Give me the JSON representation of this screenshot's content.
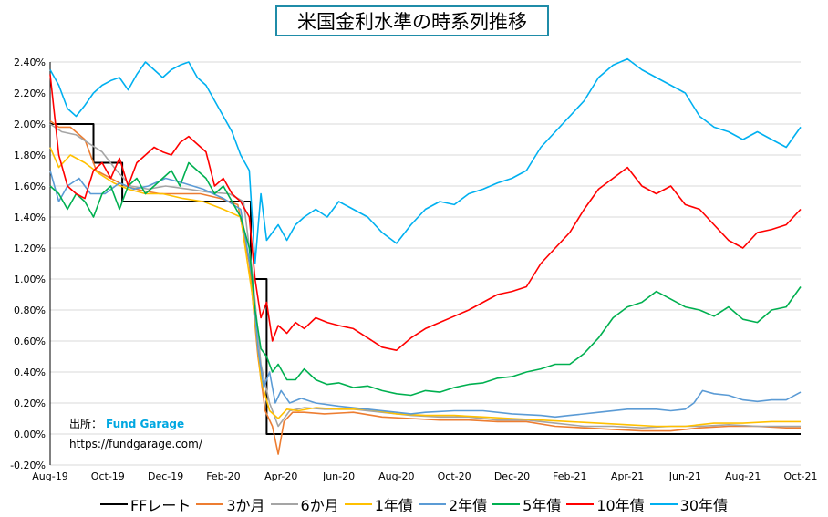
{
  "chart_data": {
    "type": "line",
    "title": "米国金利水準の時系列推移",
    "source_label": "出所：",
    "source_name": "Fund Garage",
    "source_url": "https://fundgarage.com/",
    "ylim": [
      -0.2,
      2.4
    ],
    "y_ticks": [
      "-0.20%",
      "0.00%",
      "0.20%",
      "0.40%",
      "0.60%",
      "0.80%",
      "1.00%",
      "1.20%",
      "1.40%",
      "1.60%",
      "1.80%",
      "2.00%",
      "2.20%",
      "2.40%"
    ],
    "y_tick_values": [
      -0.2,
      0,
      0.2,
      0.4,
      0.6,
      0.8,
      1.0,
      1.2,
      1.4,
      1.6,
      1.8,
      2.0,
      2.2,
      2.4
    ],
    "x_ticks": [
      "Aug-19",
      "Oct-19",
      "Dec-19",
      "Feb-20",
      "Apr-20",
      "Jun-20",
      "Aug-20",
      "Oct-20",
      "Dec-20",
      "Feb-21",
      "Apr-21",
      "Jun-21",
      "Aug-21",
      "Oct-21"
    ],
    "x_tick_values": [
      0,
      2,
      4,
      6,
      8,
      10,
      12,
      14,
      16,
      18,
      20,
      22,
      24,
      26
    ],
    "legend_position": "bottom",
    "series": [
      {
        "name": "FFレート",
        "color": "#000000",
        "step": true,
        "x": [
          0,
          1.0,
          1.5,
          1.5,
          2.5,
          2.5,
          6.95,
          6.95,
          7.5,
          7.5,
          26
        ],
        "y": [
          2.0,
          2.0,
          2.0,
          1.75,
          1.75,
          1.5,
          1.5,
          1.0,
          1.0,
          0.0,
          0.0
        ]
      },
      {
        "name": "3か月",
        "color": "#ed7d31",
        "x": [
          0,
          0.3,
          0.7,
          1.2,
          1.6,
          2.1,
          2.6,
          3.2,
          3.8,
          4.5,
          5.2,
          5.9,
          6.5,
          6.9,
          7.2,
          7.45,
          7.7,
          7.9,
          8.1,
          8.4,
          8.8,
          9.5,
          10.5,
          11.5,
          12.5,
          13.5,
          14.5,
          15.5,
          16.5,
          17.5,
          18.5,
          19.5,
          20.5,
          21.5,
          22.5,
          23.5,
          24.5,
          25.5,
          26
        ],
        "y": [
          2.02,
          1.98,
          1.98,
          1.9,
          1.7,
          1.65,
          1.6,
          1.57,
          1.55,
          1.55,
          1.55,
          1.52,
          1.48,
          1.1,
          0.5,
          0.15,
          0.05,
          -0.13,
          0.08,
          0.14,
          0.14,
          0.13,
          0.14,
          0.11,
          0.1,
          0.09,
          0.09,
          0.08,
          0.08,
          0.05,
          0.04,
          0.03,
          0.02,
          0.02,
          0.04,
          0.05,
          0.05,
          0.04,
          0.04
        ]
      },
      {
        "name": "6か月",
        "color": "#a5a5a5",
        "x": [
          0,
          0.4,
          0.9,
          1.3,
          1.8,
          2.3,
          2.8,
          3.4,
          4.0,
          4.8,
          5.5,
          6.2,
          6.7,
          7.0,
          7.3,
          7.6,
          7.9,
          8.3,
          8.8,
          9.5,
          10.5,
          11.5,
          12.5,
          13.5,
          14.5,
          15.5,
          16.5,
          17.5,
          18.5,
          19.5,
          20.5,
          21.5,
          22.5,
          23.5,
          24.5,
          25.5,
          26
        ],
        "y": [
          2.0,
          1.95,
          1.93,
          1.88,
          1.82,
          1.7,
          1.6,
          1.58,
          1.6,
          1.58,
          1.56,
          1.55,
          1.5,
          1.05,
          0.45,
          0.2,
          0.05,
          0.15,
          0.17,
          0.16,
          0.16,
          0.14,
          0.12,
          0.11,
          0.11,
          0.09,
          0.09,
          0.07,
          0.05,
          0.05,
          0.04,
          0.05,
          0.05,
          0.06,
          0.05,
          0.05,
          0.05
        ]
      },
      {
        "name": "1年債",
        "color": "#ffc000",
        "x": [
          0,
          0.3,
          0.7,
          1.2,
          1.7,
          2.2,
          2.7,
          3.3,
          3.9,
          4.6,
          5.3,
          6.0,
          6.6,
          7.0,
          7.3,
          7.6,
          7.9,
          8.2,
          8.6,
          9.2,
          10.0,
          11.0,
          12.0,
          13.0,
          14.0,
          15.0,
          16.0,
          17.0,
          18.0,
          19.0,
          20.0,
          21.0,
          22.0,
          23.0,
          24.0,
          25.0,
          26
        ],
        "y": [
          1.85,
          1.72,
          1.8,
          1.75,
          1.68,
          1.62,
          1.58,
          1.55,
          1.55,
          1.52,
          1.5,
          1.45,
          1.4,
          0.9,
          0.35,
          0.15,
          0.1,
          0.16,
          0.15,
          0.17,
          0.16,
          0.16,
          0.13,
          0.12,
          0.12,
          0.11,
          0.1,
          0.09,
          0.08,
          0.07,
          0.06,
          0.05,
          0.05,
          0.07,
          0.07,
          0.08,
          0.08
        ]
      },
      {
        "name": "2年債",
        "color": "#5b9bd5",
        "x": [
          0,
          0.3,
          0.6,
          1.0,
          1.4,
          1.9,
          2.4,
          2.9,
          3.4,
          4.0,
          4.6,
          5.3,
          6.0,
          6.6,
          7.0,
          7.2,
          7.4,
          7.6,
          7.8,
          8.0,
          8.3,
          8.7,
          9.2,
          10.0,
          11.0,
          12.0,
          12.5,
          13.0,
          14.0,
          15.0,
          16.0,
          17.0,
          17.5,
          18.0,
          19.0,
          20.0,
          20.5,
          21.0,
          21.5,
          22.0,
          22.3,
          22.6,
          23.0,
          23.5,
          24.0,
          24.5,
          25.0,
          25.5,
          26
        ],
        "y": [
          1.7,
          1.5,
          1.6,
          1.65,
          1.55,
          1.55,
          1.62,
          1.58,
          1.6,
          1.65,
          1.62,
          1.58,
          1.52,
          1.45,
          1.0,
          0.55,
          0.3,
          0.4,
          0.2,
          0.28,
          0.2,
          0.23,
          0.2,
          0.18,
          0.16,
          0.14,
          0.13,
          0.14,
          0.15,
          0.15,
          0.13,
          0.12,
          0.11,
          0.12,
          0.14,
          0.16,
          0.16,
          0.16,
          0.15,
          0.16,
          0.2,
          0.28,
          0.26,
          0.25,
          0.22,
          0.21,
          0.22,
          0.22,
          0.27
        ]
      },
      {
        "name": "5年債",
        "color": "#00b050",
        "x": [
          0,
          0.3,
          0.6,
          0.9,
          1.2,
          1.5,
          1.8,
          2.1,
          2.4,
          2.7,
          3.0,
          3.3,
          3.6,
          3.9,
          4.2,
          4.5,
          4.8,
          5.1,
          5.4,
          5.7,
          6.0,
          6.3,
          6.6,
          6.9,
          7.1,
          7.3,
          7.5,
          7.7,
          7.9,
          8.2,
          8.5,
          8.8,
          9.2,
          9.6,
          10.0,
          10.5,
          11.0,
          11.5,
          12.0,
          12.5,
          13.0,
          13.5,
          14.0,
          14.5,
          15.0,
          15.5,
          16.0,
          16.5,
          17.0,
          17.5,
          18.0,
          18.5,
          19.0,
          19.5,
          20.0,
          20.5,
          21.0,
          21.5,
          22.0,
          22.5,
          23.0,
          23.5,
          24.0,
          24.5,
          25.0,
          25.5,
          26
        ],
        "y": [
          1.6,
          1.55,
          1.45,
          1.55,
          1.5,
          1.4,
          1.55,
          1.6,
          1.45,
          1.6,
          1.65,
          1.55,
          1.6,
          1.65,
          1.7,
          1.6,
          1.75,
          1.7,
          1.65,
          1.55,
          1.6,
          1.5,
          1.4,
          1.2,
          0.8,
          0.55,
          0.5,
          0.4,
          0.45,
          0.35,
          0.35,
          0.42,
          0.35,
          0.32,
          0.33,
          0.3,
          0.31,
          0.28,
          0.26,
          0.25,
          0.28,
          0.27,
          0.3,
          0.32,
          0.33,
          0.36,
          0.37,
          0.4,
          0.42,
          0.45,
          0.45,
          0.52,
          0.62,
          0.75,
          0.82,
          0.85,
          0.92,
          0.87,
          0.82,
          0.8,
          0.76,
          0.82,
          0.74,
          0.72,
          0.8,
          0.82,
          0.95
        ]
      },
      {
        "name": "10年債",
        "color": "#ff0000",
        "x": [
          0,
          0.3,
          0.6,
          0.9,
          1.2,
          1.5,
          1.8,
          2.1,
          2.4,
          2.7,
          3.0,
          3.3,
          3.6,
          3.9,
          4.2,
          4.5,
          4.8,
          5.1,
          5.4,
          5.7,
          6.0,
          6.3,
          6.6,
          6.9,
          7.1,
          7.3,
          7.5,
          7.7,
          7.9,
          8.2,
          8.5,
          8.8,
          9.2,
          9.6,
          10.0,
          10.5,
          11.0,
          11.5,
          12.0,
          12.5,
          13.0,
          13.5,
          14.0,
          14.5,
          15.0,
          15.5,
          16.0,
          16.5,
          17.0,
          17.5,
          18.0,
          18.5,
          19.0,
          19.5,
          20.0,
          20.5,
          21.0,
          21.5,
          22.0,
          22.5,
          23.0,
          23.5,
          24.0,
          24.5,
          25.0,
          25.5,
          26
        ],
        "y": [
          2.32,
          1.8,
          1.6,
          1.55,
          1.52,
          1.7,
          1.75,
          1.65,
          1.78,
          1.6,
          1.75,
          1.8,
          1.85,
          1.82,
          1.8,
          1.88,
          1.92,
          1.87,
          1.82,
          1.6,
          1.65,
          1.55,
          1.5,
          1.4,
          1.0,
          0.75,
          0.85,
          0.6,
          0.7,
          0.65,
          0.72,
          0.68,
          0.75,
          0.72,
          0.7,
          0.68,
          0.62,
          0.56,
          0.54,
          0.62,
          0.68,
          0.72,
          0.76,
          0.8,
          0.85,
          0.9,
          0.92,
          0.95,
          1.1,
          1.2,
          1.3,
          1.45,
          1.58,
          1.65,
          1.72,
          1.6,
          1.55,
          1.6,
          1.48,
          1.45,
          1.35,
          1.25,
          1.2,
          1.3,
          1.32,
          1.35,
          1.45
        ]
      },
      {
        "name": "30年債",
        "color": "#00b0f0",
        "x": [
          0,
          0.3,
          0.6,
          0.9,
          1.2,
          1.5,
          1.8,
          2.1,
          2.4,
          2.7,
          3.0,
          3.3,
          3.6,
          3.9,
          4.2,
          4.5,
          4.8,
          5.1,
          5.4,
          5.7,
          6.0,
          6.3,
          6.6,
          6.9,
          7.1,
          7.3,
          7.5,
          7.7,
          7.9,
          8.2,
          8.5,
          8.8,
          9.2,
          9.6,
          10.0,
          10.5,
          11.0,
          11.5,
          12.0,
          12.5,
          13.0,
          13.5,
          14.0,
          14.5,
          15.0,
          15.5,
          16.0,
          16.5,
          17.0,
          17.5,
          18.0,
          18.5,
          19.0,
          19.5,
          20.0,
          20.5,
          21.0,
          21.5,
          22.0,
          22.5,
          23.0,
          23.5,
          24.0,
          24.5,
          25.0,
          25.5,
          26
        ],
        "y": [
          2.35,
          2.25,
          2.1,
          2.05,
          2.12,
          2.2,
          2.25,
          2.28,
          2.3,
          2.22,
          2.32,
          2.4,
          2.35,
          2.3,
          2.35,
          2.38,
          2.4,
          2.3,
          2.25,
          2.15,
          2.05,
          1.95,
          1.8,
          1.7,
          1.1,
          1.55,
          1.25,
          1.3,
          1.35,
          1.25,
          1.35,
          1.4,
          1.45,
          1.4,
          1.5,
          1.45,
          1.4,
          1.3,
          1.23,
          1.35,
          1.45,
          1.5,
          1.48,
          1.55,
          1.58,
          1.62,
          1.65,
          1.7,
          1.85,
          1.95,
          2.05,
          2.15,
          2.3,
          2.38,
          2.42,
          2.35,
          2.3,
          2.25,
          2.2,
          2.05,
          1.98,
          1.95,
          1.9,
          1.95,
          1.9,
          1.85,
          1.98
        ]
      }
    ]
  },
  "colors": {
    "title_border": "#1f8ca8",
    "brand": "#00a7e1",
    "axis": "#000000",
    "grid": "#d9d9d9"
  }
}
